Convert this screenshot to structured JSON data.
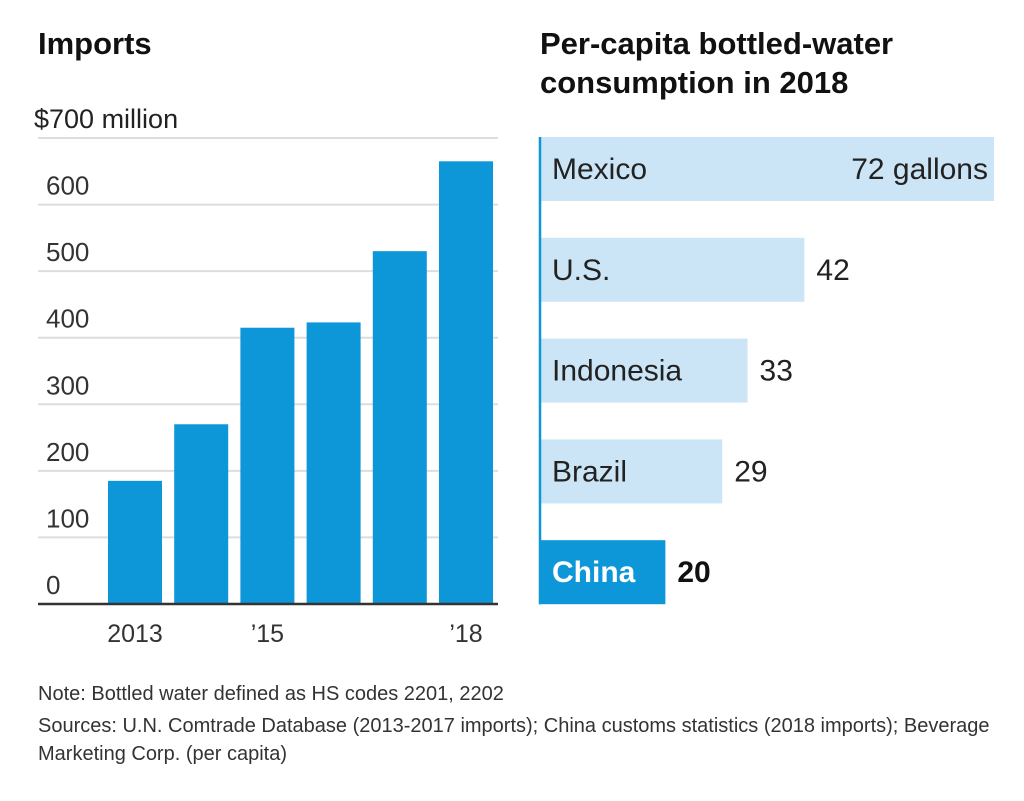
{
  "chart_data": [
    {
      "type": "bar",
      "title": "Imports",
      "ylabel": "$700 million",
      "categories": [
        "2013",
        "2014",
        "2015",
        "2016",
        "2017",
        "2018"
      ],
      "values": [
        185,
        270,
        415,
        423,
        530,
        665
      ],
      "ylim": [
        0,
        700
      ],
      "yticks": [
        "$700 million",
        "600",
        "500",
        "400",
        "300",
        "200",
        "100",
        "0"
      ],
      "xtick_labels": [
        {
          "category": "2013",
          "label": "2013"
        },
        {
          "category": "2015",
          "label": "’15"
        },
        {
          "category": "2018",
          "label": "’18"
        }
      ],
      "grid": true,
      "colors": {
        "bar": "#0d97d8",
        "grid": "#dddddd",
        "axis": "#333333"
      }
    },
    {
      "type": "bar",
      "orientation": "horizontal",
      "title": "Per-capita bottled-water consumption in 2018",
      "title_lines": [
        "Per-capita bottled-water",
        "consumption in 2018"
      ],
      "categories": [
        "Mexico",
        "U.S.",
        "Indonesia",
        "Brazil",
        "China"
      ],
      "values": [
        72,
        42,
        33,
        29,
        20
      ],
      "value_labels": [
        "72 gallons",
        "42",
        "33",
        "29",
        "20"
      ],
      "unit": "gallons",
      "highlight": "China",
      "colors": {
        "bar": "#cce5f6",
        "highlight": "#0d97d8",
        "axis": "#0d97d8"
      }
    }
  ],
  "footer": {
    "note": "Note: Bottled water defined as HS codes 2201, 2202",
    "sources": "Sources: U.N. Comtrade Database (2013-2017 imports); China customs statistics (2018 imports); Beverage Marketing Corp. (per capita)"
  }
}
